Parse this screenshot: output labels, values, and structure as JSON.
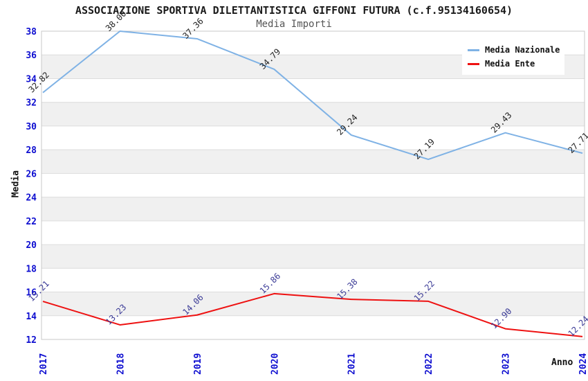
{
  "title": "ASSOCIAZIONE SPORTIVA DILETTANTISTICA GIFFONI FUTURA (c.f.95134160654)",
  "subtitle": "Media Importi",
  "chart_data": {
    "type": "line",
    "categories": [
      "2017",
      "2018",
      "2019",
      "2020",
      "2021",
      "2022",
      "2023",
      "2024"
    ],
    "series": [
      {
        "name": "Media Nazionale",
        "color": "#7fb2e5",
        "label_color": "#222222",
        "values": [
          32.82,
          38.0,
          37.36,
          34.79,
          29.24,
          27.19,
          29.43,
          27.71
        ]
      },
      {
        "name": "Media Ente",
        "color": "#ee1111",
        "label_color": "#3a3a96",
        "values": [
          15.21,
          13.23,
          14.06,
          15.86,
          15.38,
          15.22,
          12.9,
          12.24
        ]
      }
    ],
    "xlabel": "Anno",
    "ylabel": "Media",
    "ylim": [
      12,
      38
    ],
    "ytick_step": 2,
    "grid": true,
    "legend_position": "top-right",
    "axis_tick_color": "#0d0dd0",
    "band_color": "#f0f0f0",
    "gridline_color": "#dcdcdc",
    "border_color": "#c8c8c8"
  }
}
